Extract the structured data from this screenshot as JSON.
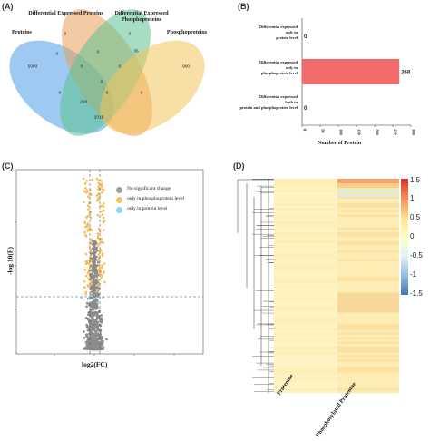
{
  "panels": {
    "a": "(A)",
    "b": "(B)",
    "c": "(C)",
    "d": "(D)"
  },
  "venn": {
    "sets": [
      {
        "label": "Proteins",
        "color": "#4f9ee6"
      },
      {
        "label": "Differential Expressed Proteins",
        "color": "#e8a05a"
      },
      {
        "label": "Differential Expressed Phosphoproteins",
        "color": "#5cc392"
      },
      {
        "label": "Phosphoproteins",
        "color": "#f3c45c"
      }
    ],
    "counts": [
      "5093",
      "0",
      "0",
      "36",
      "900",
      "0",
      "0",
      "0",
      "0",
      "0",
      "268",
      "0",
      "0",
      "2016",
      "0"
    ]
  },
  "bar_chart": {
    "categories": [
      "Differential expressed\nonly in\nprotein level",
      "Differential expressed\nonly in\nphosphoprotein level",
      "Differential expressed\nboth in\nprotein and phosphoprotein level"
    ],
    "values": [
      0,
      268,
      0
    ],
    "bar_color": "#f26b6b",
    "xticks": [
      "0",
      "50",
      "100",
      "150",
      "200",
      "250",
      "300"
    ],
    "xlabel": "Number of Protein",
    "xlim": [
      0,
      300
    ]
  },
  "volcano": {
    "legend": [
      {
        "label": "No significant change",
        "color": "#9e9e9e"
      },
      {
        "label": "only in phosphoprotein level",
        "color": "#f8c165"
      },
      {
        "label": "only in protein level",
        "color": "#8dd5ef"
      }
    ],
    "xlabel": "log2(FC)",
    "ylabel": "-log 10(P)"
  },
  "heatmap": {
    "columns": [
      "Proteome",
      "Phosphorylated Proteome"
    ],
    "colorbar_ticks": [
      "1.5",
      "1",
      "0.5",
      "0",
      "-0.5",
      "-1",
      "-1.5"
    ],
    "colorbar_colors": [
      "#d7302a",
      "#f88d52",
      "#fee090",
      "#ffffbf",
      "#e0f3f8",
      "#91bfdb",
      "#4575b4"
    ]
  },
  "chart_data": [
    {
      "type": "bar",
      "categories": [
        "Differential expressed only in protein level",
        "Differential expressed only in phosphoprotein level",
        "Differential expressed both in protein and phosphoprotein level"
      ],
      "values": [
        0,
        268,
        0
      ],
      "xlabel": "Number of Protein",
      "xlim": [
        0,
        300
      ]
    },
    {
      "type": "scatter",
      "xlabel": "log2(FC)",
      "ylabel": "-log 10(P)",
      "series": [
        {
          "name": "No significant change"
        },
        {
          "name": "only in phosphoprotein level"
        },
        {
          "name": "only in protein level"
        }
      ]
    },
    {
      "type": "heatmap",
      "columns": [
        "Proteome",
        "Phosphorylated Proteome"
      ],
      "colorbar_range": [
        -1.5,
        1.5
      ]
    }
  ]
}
